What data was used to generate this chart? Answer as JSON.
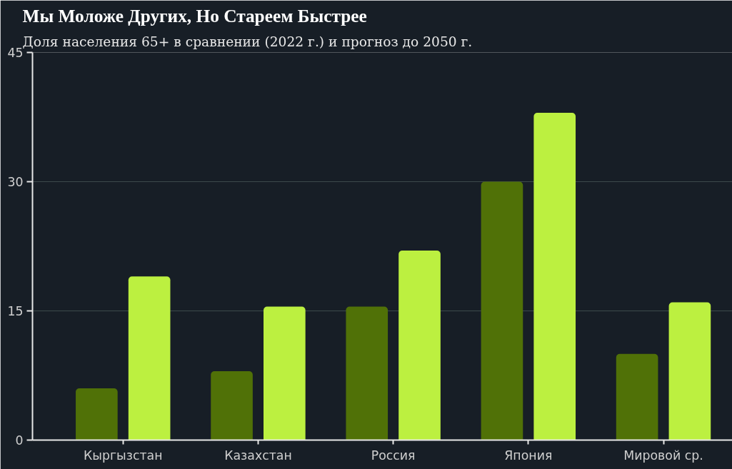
{
  "chart_data": {
    "type": "bar",
    "title": "Мы Моложе Других, Но Стареем Быстрее",
    "subtitle": "Доля населения 65+ в сравнении (2022 г.) и прогноз до 2050 г.",
    "categories": [
      "Кыргызстан",
      "Казахстан",
      "Россия",
      "Япония",
      "Мировой ср."
    ],
    "series": [
      {
        "color": "#507107",
        "values": [
          6,
          8,
          15.5,
          30,
          10
        ]
      },
      {
        "color": "#bcf040",
        "values": [
          19,
          15.5,
          22,
          38,
          16
        ]
      }
    ],
    "ylim": [
      0,
      45
    ],
    "yticks": [
      0,
      15,
      30,
      45
    ],
    "grid": "y"
  }
}
